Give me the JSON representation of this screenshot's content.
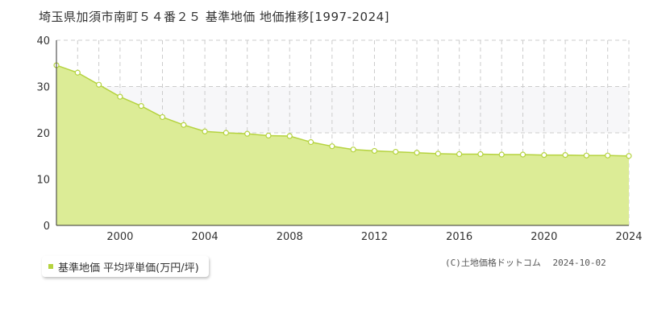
{
  "title": "埼玉県加須市南町５４番２５ 基準地価 地価推移[1997-2024]",
  "legend": {
    "label": "基準地価 平均坪単価(万円/坪)"
  },
  "copyright": {
    "text": "(C)土地価格ドットコム",
    "date": "2024-10-02"
  },
  "colors": {
    "fill": "#dcec96",
    "line": "#b5d33f",
    "band": "#f7f7f9",
    "grid": "#cccccc"
  },
  "chart_data": {
    "type": "area",
    "title": "埼玉県加須市南町５４番２５ 基準地価 地価推移[1997-2024]",
    "xlabel": "",
    "ylabel": "",
    "xlim": [
      1997,
      2024
    ],
    "ylim": [
      0,
      40
    ],
    "yticks": [
      0,
      10,
      20,
      30,
      40
    ],
    "xtick_labels": [
      "2000",
      "2004",
      "2008",
      "2012",
      "2016",
      "2020",
      "2024"
    ],
    "grid": true,
    "series": [
      {
        "name": "基準地価 平均坪単価(万円/坪)",
        "x": [
          1997,
          1998,
          1999,
          2000,
          2001,
          2002,
          2003,
          2004,
          2005,
          2006,
          2007,
          2008,
          2009,
          2010,
          2011,
          2012,
          2013,
          2014,
          2015,
          2016,
          2017,
          2018,
          2019,
          2020,
          2021,
          2022,
          2023,
          2024
        ],
        "values": [
          34.6,
          33.0,
          30.4,
          27.8,
          25.8,
          23.4,
          21.7,
          20.3,
          20.0,
          19.8,
          19.4,
          19.3,
          18.0,
          17.1,
          16.4,
          16.1,
          15.9,
          15.7,
          15.5,
          15.4,
          15.4,
          15.3,
          15.3,
          15.2,
          15.2,
          15.1,
          15.1,
          15.0
        ]
      }
    ]
  }
}
